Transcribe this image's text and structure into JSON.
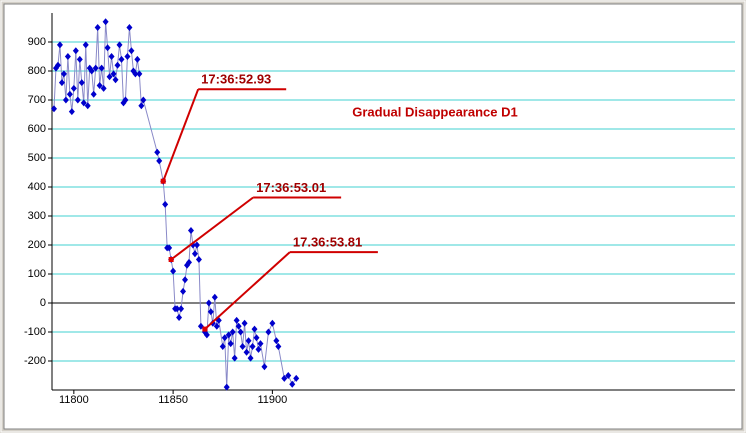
{
  "chart_data": {
    "type": "scatter",
    "title": "Gradual Disappearance D1",
    "x": [
      11790,
      11791,
      11792,
      11793,
      11794,
      11795,
      11796,
      11797,
      11798,
      11799,
      11800,
      11801,
      11802,
      11803,
      11804,
      11805,
      11806,
      11807,
      11808,
      11809,
      11810,
      11811,
      11812,
      11813,
      11814,
      11815,
      11816,
      11817,
      11818,
      11819,
      11820,
      11821,
      11822,
      11823,
      11824,
      11825,
      11826,
      11827,
      11828,
      11829,
      11830,
      11831,
      11832,
      11833,
      11834,
      11835,
      11842,
      11843,
      11845,
      11846,
      11847,
      11848,
      11849,
      11850,
      11851,
      11852,
      11853,
      11854,
      11855,
      11856,
      11857,
      11858,
      11859,
      11860,
      11861,
      11862,
      11863,
      11864,
      11866,
      11867,
      11868,
      11869,
      11870,
      11871,
      11872,
      11873,
      11875,
      11876,
      11877,
      11878,
      11879,
      11880,
      11881,
      11882,
      11883,
      11884,
      11885,
      11886,
      11887,
      11888,
      11889,
      11890,
      11891,
      11892,
      11893,
      11894,
      11896,
      11898,
      11900,
      11902,
      11903,
      11906,
      11908,
      11910,
      11912
    ],
    "series": [
      {
        "color": "#0000cc",
        "line_color": "#8a8ac8",
        "values": [
          670,
          810,
          820,
          890,
          760,
          790,
          700,
          850,
          720,
          660,
          740,
          870,
          700,
          840,
          760,
          690,
          890,
          680,
          810,
          800,
          720,
          810,
          950,
          750,
          810,
          740,
          970,
          880,
          780,
          850,
          790,
          770,
          820,
          890,
          840,
          690,
          700,
          850,
          950,
          870,
          800,
          790,
          840,
          790,
          680,
          700,
          520,
          490,
          420,
          340,
          190,
          190,
          150,
          110,
          -20,
          -20,
          -50,
          -20,
          40,
          80,
          130,
          140,
          250,
          200,
          170,
          200,
          150,
          -80,
          -100,
          -110,
          0,
          -30,
          -70,
          20,
          -80,
          -60,
          -150,
          -120,
          -290,
          -110,
          -140,
          -100,
          -190,
          -60,
          -80,
          -100,
          -150,
          -70,
          -170,
          -130,
          -190,
          -150,
          -90,
          -120,
          -160,
          -140,
          -220,
          -100,
          -70,
          -130,
          -150,
          -260,
          -250,
          -280,
          -260
        ]
      }
    ],
    "annotations": [
      {
        "text": "17:36:52.93",
        "x": 11845,
        "y": 420
      },
      {
        "text": "17:36:53.01",
        "x": 11849,
        "y": 150
      },
      {
        "text": "17.36:53.81",
        "x": 11866,
        "y": -90
      }
    ],
    "xlim": [
      11789,
      12133
    ],
    "xticks": [
      11800,
      11850,
      11900
    ],
    "ylim": [
      -300,
      1000
    ],
    "yticks": [
      -200,
      -100,
      0,
      100,
      200,
      300,
      400,
      500,
      600,
      700,
      800,
      900
    ],
    "grid": true,
    "grid_color": "#40d0d0"
  }
}
